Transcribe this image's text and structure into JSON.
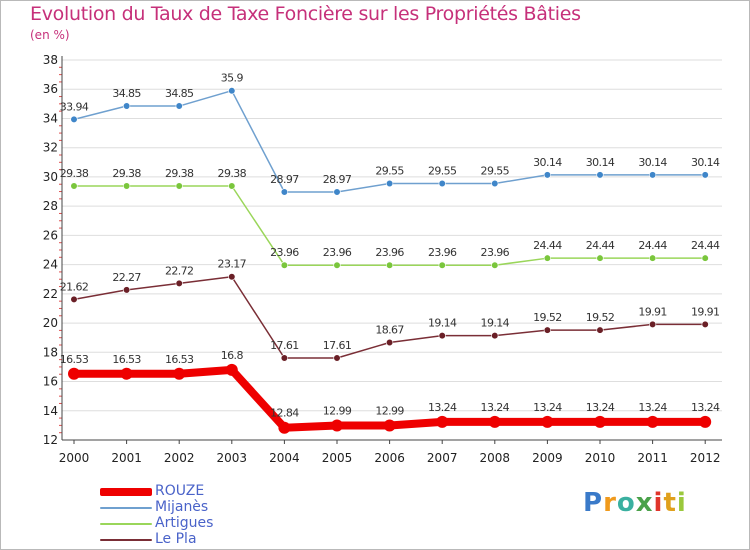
{
  "chart_data": {
    "type": "line",
    "title": "Evolution du Taux de Taxe Foncière sur les Propriétés Bâties",
    "unit": "(en %)",
    "xlabel": "",
    "ylabel": "",
    "ylim": [
      12,
      38
    ],
    "yticks": [
      12,
      14,
      16,
      18,
      20,
      22,
      24,
      26,
      28,
      30,
      32,
      34,
      36,
      38
    ],
    "grid": "horizontal",
    "x": [
      "2000",
      "2001",
      "2002",
      "2003",
      "2004",
      "2005",
      "2006",
      "2007",
      "2008",
      "2009",
      "2010",
      "2011",
      "2012"
    ],
    "series": [
      {
        "name": "ROUZE",
        "color": "#ee0000",
        "bold": true,
        "values": [
          16.53,
          16.53,
          16.53,
          16.8,
          12.84,
          12.99,
          12.99,
          13.24,
          13.24,
          13.24,
          13.24,
          13.24,
          13.24
        ],
        "labels": [
          "16.53",
          "16.53",
          "16.53",
          "16.8",
          "12.84",
          "12.99",
          "12.99",
          "13.24",
          "13.24",
          "13.24",
          "13.24",
          "13.24",
          "13.24"
        ]
      },
      {
        "name": "Mijanès",
        "color": "#6fa0cf",
        "marker": "#3f86c9",
        "bold": false,
        "values": [
          33.94,
          34.85,
          34.85,
          35.9,
          28.97,
          28.97,
          29.55,
          29.55,
          29.55,
          30.14,
          30.14,
          30.14,
          30.14
        ],
        "labels": [
          "33.94",
          "34.85",
          "34.85",
          "35.9",
          "28.97",
          "28.97",
          "29.55",
          "29.55",
          "29.55",
          "30.14",
          "30.14",
          "30.14",
          "30.14"
        ]
      },
      {
        "name": "Artigues",
        "color": "#9ad65a",
        "marker": "#7ac63c",
        "bold": false,
        "values": [
          29.38,
          29.38,
          29.38,
          29.38,
          23.96,
          23.96,
          23.96,
          23.96,
          23.96,
          24.44,
          24.44,
          24.44,
          24.44
        ],
        "labels": [
          "29.38",
          "29.38",
          "29.38",
          "29.38",
          "23.96",
          "23.96",
          "23.96",
          "23.96",
          "23.96",
          "24.44",
          "24.44",
          "24.44",
          "24.44"
        ]
      },
      {
        "name": "Le Pla",
        "color": "#7a2e36",
        "marker": "#6a1f26",
        "bold": false,
        "values": [
          21.62,
          22.27,
          22.72,
          23.17,
          17.61,
          17.61,
          18.67,
          19.14,
          19.14,
          19.52,
          19.52,
          19.91,
          19.91
        ],
        "labels": [
          "21.62",
          "22.27",
          "22.72",
          "23.17",
          "17.61",
          "17.61",
          "18.67",
          "19.14",
          "19.14",
          "19.52",
          "19.52",
          "19.91",
          "19.91"
        ]
      }
    ],
    "legend": "bottom-left"
  },
  "logo": {
    "letters": [
      "P",
      "r",
      "o",
      "x",
      "i",
      "t",
      "i"
    ],
    "colors": [
      "#3a7ac9",
      "#f09a1c",
      "#3ab0a0",
      "#4aa14a",
      "#e0352b",
      "#e0a01c",
      "#9ac83c"
    ]
  }
}
